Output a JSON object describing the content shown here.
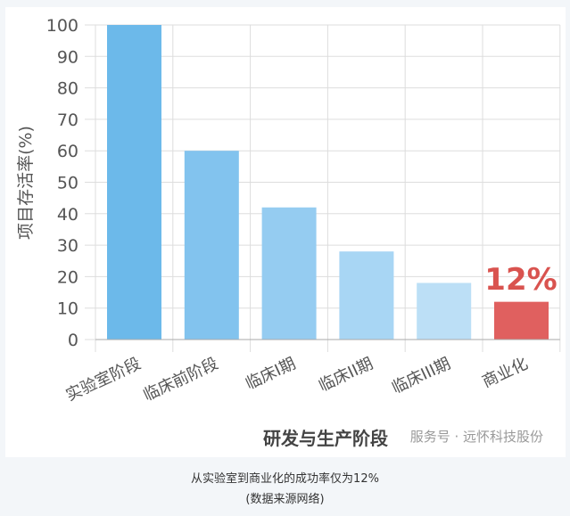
{
  "chart_data": {
    "type": "bar",
    "categories": [
      "实验室阶段",
      "临床前阶段",
      "临床I期",
      "临床II期",
      "临床III期",
      "商业化"
    ],
    "values": [
      100,
      60,
      42,
      28,
      18,
      12
    ],
    "xlabel": "研发与生产阶段",
    "ylabel": "项目存活率(%)",
    "ylim": [
      0,
      100
    ],
    "yticks": [
      0,
      10,
      20,
      30,
      40,
      50,
      60,
      70,
      80,
      90,
      100
    ],
    "grid": true,
    "annotation": "12%",
    "colors": [
      "#6cb9ea",
      "#82c3ee",
      "#95ccf1",
      "#a8d6f4",
      "#bcdff6",
      "#e0605f"
    ],
    "annotation_color": "#d9534f"
  },
  "watermark": "服务号 · 远怀科技股份",
  "caption": {
    "line1": "从实验室到商业化的成功率仅为12%",
    "line2": "(数据来源网络)"
  }
}
